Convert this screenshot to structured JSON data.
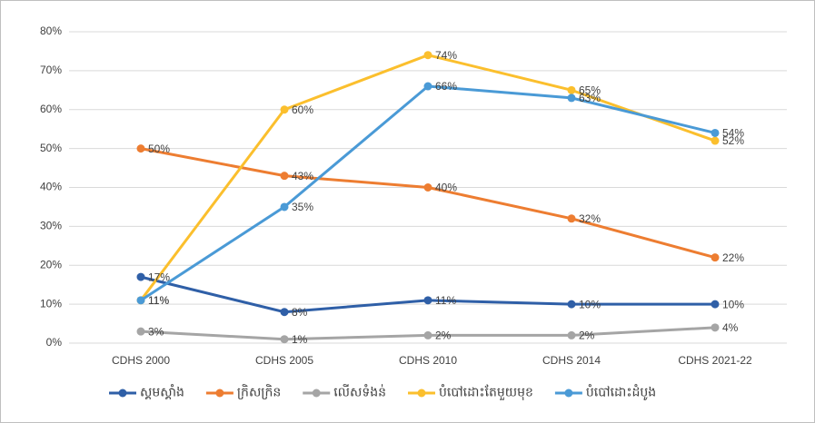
{
  "chart_data": {
    "type": "line",
    "categories": [
      "CDHS 2000",
      "CDHS 2005",
      "CDHS 2010",
      "CDHS 2014",
      "CDHS 2021-22"
    ],
    "series": [
      {
        "name": "ស្គមស្គាំង",
        "color": "#2f5fa7",
        "values": [
          17,
          8,
          11,
          10,
          10
        ],
        "value_labels": [
          "17%",
          "8%",
          "11%",
          "10%",
          "10%"
        ]
      },
      {
        "name": "ក្រិសក្រិន",
        "color": "#ed7d31",
        "values": [
          50,
          43,
          40,
          32,
          22
        ],
        "value_labels": [
          "50%",
          "43%",
          "40%",
          "32%",
          "22%"
        ]
      },
      {
        "name": "លើសទំងន់",
        "color": "#a5a5a5",
        "values": [
          3,
          1,
          2,
          2,
          4
        ],
        "value_labels": [
          "3%",
          "1%",
          "2%",
          "2%",
          "4%"
        ]
      },
      {
        "name": "បំបៅដោះតែមួយមុខ",
        "color": "#fbbf2d",
        "values": [
          11,
          60,
          74,
          65,
          52
        ],
        "value_labels": [
          "11%",
          "60%",
          "74%",
          "65%",
          "52%"
        ]
      },
      {
        "name": "បំបៅដោះដំបូង",
        "color": "#4a9ad6",
        "values": [
          11,
          35,
          66,
          63,
          54
        ],
        "value_labels": [
          "11%",
          "35%",
          "66%",
          "63%",
          "54%"
        ]
      }
    ],
    "ylim": [
      0,
      80
    ],
    "yticks": [
      {
        "value": 0,
        "label": "0%"
      },
      {
        "value": 10,
        "label": "10%"
      },
      {
        "value": 20,
        "label": "20%"
      },
      {
        "value": 30,
        "label": "30%"
      },
      {
        "value": 40,
        "label": "40%"
      },
      {
        "value": 50,
        "label": "50%"
      },
      {
        "value": 60,
        "label": "60%"
      },
      {
        "value": 70,
        "label": "70%"
      },
      {
        "value": 80,
        "label": "80%"
      }
    ],
    "grid": true,
    "legend": "bottom"
  }
}
